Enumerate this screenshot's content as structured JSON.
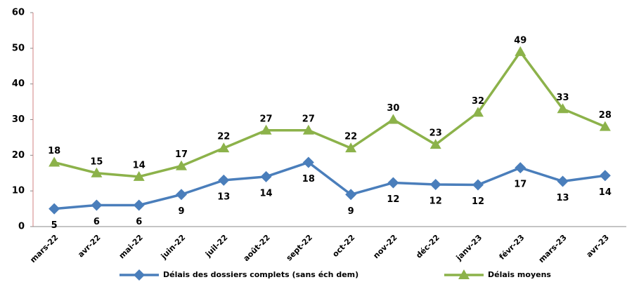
{
  "chart_data": {
    "type": "line",
    "categories": [
      "mars-22",
      "avr-22",
      "mai-22",
      "juin-22",
      "juil-22",
      "août-22",
      "sept-22",
      "oct-22",
      "nov-22",
      "déc-22",
      "janv-23",
      "févr-23",
      "mars-23",
      "avr-23"
    ],
    "series": [
      {
        "name": "Délais des dossiers complets (sans éch dem)",
        "color": "#4a7ebb",
        "marker": "diamond",
        "values": [
          5,
          6,
          6,
          9,
          13,
          14,
          18,
          9,
          12.3,
          11.8,
          11.7,
          16.5,
          12.7,
          14.3
        ],
        "value_labels": [
          "5",
          "6",
          "6",
          "9",
          "13",
          "14",
          "18",
          "9",
          "12",
          "12",
          "12",
          "17",
          "13",
          "14"
        ]
      },
      {
        "name": "Délais moyens",
        "color": "#8cb24a",
        "marker": "triangle",
        "values": [
          18,
          15,
          14,
          17,
          22,
          27,
          27,
          22,
          30,
          23,
          32,
          49,
          33,
          28
        ]
      }
    ],
    "ylim": [
      0,
      60
    ],
    "yticks": [
      0,
      10,
      20,
      30,
      40,
      50,
      60
    ]
  }
}
